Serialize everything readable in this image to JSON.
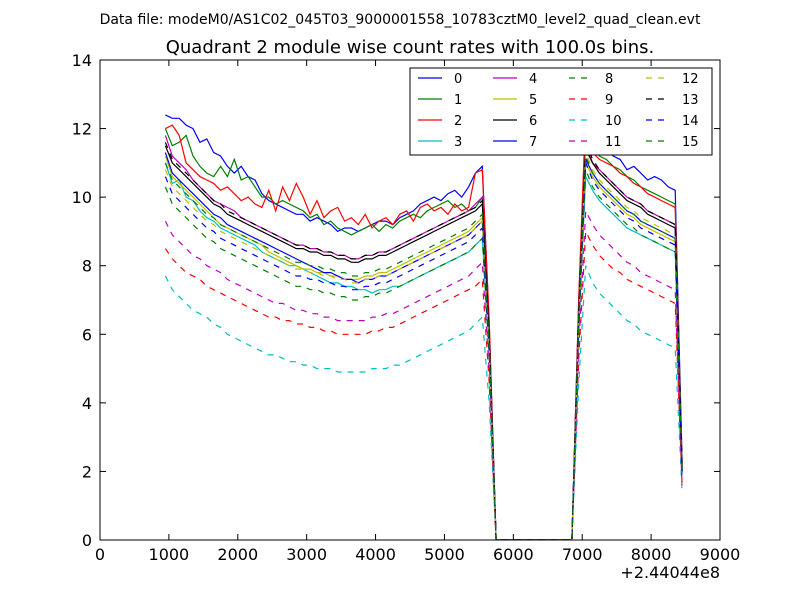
{
  "figure": {
    "suptitle": "Data file: modeM0/AS1C02_045T03_9000001558_10783cztM0_level2_quad_clean.evt"
  },
  "chart_data": {
    "type": "line",
    "title": "Quadrant 2 module wise count rates with 100.0s bins.",
    "xlabel": "",
    "ylabel": "",
    "x_offset_label": "+2.44044e8",
    "xlim": [
      0,
      9000
    ],
    "ylim": [
      0,
      14
    ],
    "x_ticks": [
      0,
      1000,
      2000,
      3000,
      4000,
      5000,
      6000,
      7000,
      8000,
      9000
    ],
    "y_ticks": [
      0,
      2,
      4,
      6,
      8,
      10,
      12,
      14
    ],
    "grid": false,
    "legend": {
      "position": "top-right",
      "columns": 4
    },
    "x": [
      950,
      1050,
      1150,
      1250,
      1350,
      1450,
      1550,
      1650,
      1750,
      1850,
      1950,
      2050,
      2150,
      2250,
      2350,
      2450,
      2550,
      2650,
      2750,
      2850,
      2950,
      3050,
      3150,
      3250,
      3350,
      3450,
      3550,
      3650,
      3750,
      3850,
      3950,
      4050,
      4150,
      4250,
      4350,
      4450,
      4550,
      4650,
      4750,
      4850,
      4950,
      5050,
      5150,
      5250,
      5350,
      5450,
      5550,
      5650,
      5750,
      6850,
      6950,
      7050,
      7150,
      7250,
      7350,
      7450,
      7550,
      7650,
      7750,
      7850,
      7950,
      8050,
      8150,
      8250,
      8350,
      8450
    ],
    "series": [
      {
        "name": "0",
        "color": "#0000ff",
        "dash": "solid",
        "values": [
          12.4,
          12.3,
          12.3,
          12.1,
          12.0,
          11.6,
          11.7,
          11.3,
          11.2,
          10.9,
          10.7,
          10.9,
          10.6,
          10.5,
          10.1,
          9.9,
          9.8,
          9.7,
          9.6,
          9.5,
          9.5,
          9.3,
          9.4,
          9.3,
          9.2,
          9.0,
          9.1,
          9.1,
          9.0,
          9.1,
          9.2,
          9.3,
          9.3,
          9.2,
          9.4,
          9.5,
          9.6,
          9.8,
          9.9,
          10.0,
          9.9,
          10.1,
          10.2,
          10.0,
          10.3,
          10.7,
          10.9,
          6.3,
          0,
          0,
          7.0,
          12.2,
          11.8,
          11.6,
          11.4,
          11.2,
          11.1,
          10.8,
          10.9,
          10.7,
          10.5,
          10.6,
          10.5,
          10.3,
          10.2,
          2.3
        ]
      },
      {
        "name": "1",
        "color": "#008000",
        "dash": "solid",
        "values": [
          12.0,
          11.5,
          11.6,
          11.8,
          11.2,
          10.9,
          10.7,
          10.6,
          10.9,
          10.6,
          11.1,
          10.5,
          10.6,
          10.3,
          10.0,
          10.0,
          9.8,
          9.9,
          9.8,
          9.7,
          9.6,
          9.4,
          9.5,
          9.2,
          9.3,
          9.1,
          9.0,
          8.9,
          9.0,
          9.1,
          9.2,
          9.0,
          9.2,
          9.1,
          9.3,
          9.4,
          9.5,
          9.4,
          9.6,
          9.7,
          9.8,
          9.9,
          9.7,
          9.8,
          9.6,
          9.7,
          10.0,
          6.2,
          0,
          0,
          6.9,
          11.9,
          11.5,
          11.2,
          11.1,
          10.9,
          10.8,
          10.6,
          10.5,
          10.3,
          10.2,
          10.1,
          10.0,
          9.9,
          9.8,
          2.2
        ]
      },
      {
        "name": "2",
        "color": "#ff0000",
        "dash": "solid",
        "values": [
          12.0,
          12.1,
          11.8,
          11.0,
          10.8,
          10.6,
          10.5,
          10.4,
          10.2,
          10.3,
          10.1,
          9.9,
          10.0,
          9.8,
          9.7,
          10.2,
          9.6,
          10.3,
          9.9,
          10.4,
          10.0,
          9.5,
          9.9,
          9.4,
          9.6,
          9.7,
          9.3,
          9.4,
          9.2,
          9.5,
          9.1,
          9.3,
          9.4,
          9.2,
          9.5,
          9.6,
          9.3,
          9.7,
          9.8,
          9.6,
          9.7,
          9.5,
          9.8,
          9.6,
          9.7,
          10.7,
          10.8,
          6.4,
          0,
          0,
          7.1,
          12.5,
          11.3,
          11.1,
          11.0,
          10.9,
          10.7,
          10.6,
          10.4,
          10.3,
          10.1,
          10.0,
          9.9,
          9.8,
          9.7,
          2.1
        ]
      },
      {
        "name": "3",
        "color": "#00bfbf",
        "dash": "solid",
        "values": [
          11.0,
          10.4,
          10.5,
          10.0,
          9.9,
          9.6,
          9.4,
          9.3,
          9.1,
          9.0,
          8.9,
          8.8,
          8.7,
          8.6,
          8.4,
          8.3,
          8.2,
          8.1,
          8.0,
          8.0,
          7.9,
          7.8,
          7.7,
          7.6,
          7.5,
          7.5,
          7.4,
          7.4,
          7.3,
          7.3,
          7.2,
          7.3,
          7.3,
          7.4,
          7.4,
          7.5,
          7.6,
          7.7,
          7.8,
          7.9,
          8.0,
          8.1,
          8.2,
          8.3,
          8.4,
          8.6,
          8.8,
          5.5,
          0,
          0,
          6.3,
          10.6,
          10.2,
          9.9,
          9.7,
          9.5,
          9.3,
          9.1,
          9.0,
          8.9,
          8.8,
          8.7,
          8.6,
          8.5,
          8.4,
          1.9
        ]
      },
      {
        "name": "4",
        "color": "#bf00bf",
        "dash": "solid",
        "values": [
          11.8,
          11.2,
          11.0,
          10.8,
          10.5,
          10.3,
          10.1,
          9.9,
          9.8,
          9.7,
          9.6,
          9.4,
          9.3,
          9.2,
          9.1,
          9.0,
          8.9,
          8.8,
          8.7,
          8.6,
          8.6,
          8.5,
          8.5,
          8.4,
          8.4,
          8.3,
          8.3,
          8.2,
          8.2,
          8.3,
          8.3,
          8.4,
          8.4,
          8.5,
          8.6,
          8.7,
          8.8,
          8.9,
          9.0,
          9.1,
          9.2,
          9.3,
          9.4,
          9.5,
          9.6,
          9.8,
          10.0,
          6.0,
          0,
          0,
          6.7,
          11.5,
          11.0,
          10.8,
          10.6,
          10.4,
          10.2,
          10.0,
          9.9,
          9.8,
          9.6,
          9.5,
          9.4,
          9.3,
          9.2,
          2.1
        ]
      },
      {
        "name": "5",
        "color": "#bfbf00",
        "dash": "solid",
        "values": [
          11.2,
          10.6,
          10.4,
          10.2,
          10.0,
          9.8,
          9.6,
          9.4,
          9.2,
          9.1,
          9.0,
          8.9,
          8.8,
          8.7,
          8.6,
          8.4,
          8.3,
          8.2,
          8.1,
          8.0,
          7.9,
          7.9,
          7.8,
          7.8,
          7.7,
          7.7,
          7.6,
          7.6,
          7.6,
          7.7,
          7.7,
          7.8,
          7.8,
          7.9,
          8.0,
          8.1,
          8.2,
          8.3,
          8.4,
          8.5,
          8.6,
          8.7,
          8.8,
          8.9,
          9.0,
          9.2,
          9.4,
          5.7,
          0,
          0,
          6.5,
          11.0,
          10.6,
          10.3,
          10.1,
          9.9,
          9.7,
          9.5,
          9.4,
          9.2,
          9.1,
          9.0,
          8.9,
          8.8,
          8.7,
          2.0
        ]
      },
      {
        "name": "6",
        "color": "#000000",
        "dash": "solid",
        "values": [
          11.5,
          11.0,
          10.8,
          10.6,
          10.4,
          10.2,
          10.0,
          9.8,
          9.7,
          9.5,
          9.4,
          9.3,
          9.2,
          9.1,
          9.0,
          8.9,
          8.8,
          8.7,
          8.6,
          8.5,
          8.5,
          8.4,
          8.4,
          8.3,
          8.3,
          8.2,
          8.2,
          8.1,
          8.1,
          8.2,
          8.2,
          8.3,
          8.3,
          8.4,
          8.5,
          8.6,
          8.7,
          8.8,
          8.9,
          9.0,
          9.1,
          9.2,
          9.3,
          9.4,
          9.5,
          9.6,
          9.8,
          5.9,
          0,
          0,
          6.6,
          11.4,
          11.0,
          10.7,
          10.5,
          10.3,
          10.1,
          9.9,
          9.8,
          9.7,
          9.5,
          9.4,
          9.3,
          9.2,
          9.1,
          2.1
        ]
      },
      {
        "name": "7",
        "color": "#0000ff",
        "dash": "solid",
        "values": [
          11.3,
          10.7,
          10.5,
          10.3,
          10.1,
          9.9,
          9.7,
          9.5,
          9.4,
          9.2,
          9.1,
          9.0,
          8.9,
          8.8,
          8.7,
          8.6,
          8.5,
          8.4,
          8.3,
          8.2,
          8.1,
          8.0,
          7.9,
          7.8,
          7.8,
          7.7,
          7.6,
          7.6,
          7.5,
          7.6,
          7.6,
          7.7,
          7.7,
          7.8,
          7.9,
          8.0,
          8.1,
          8.2,
          8.3,
          8.4,
          8.5,
          8.6,
          8.7,
          8.8,
          8.9,
          9.1,
          9.3,
          5.6,
          0,
          0,
          6.4,
          11.1,
          10.7,
          10.4,
          10.2,
          10.0,
          9.8,
          9.6,
          9.5,
          9.3,
          9.2,
          9.1,
          9.0,
          8.9,
          8.8,
          2.0
        ]
      },
      {
        "name": "8",
        "color": "#008000",
        "dash": "dashed",
        "values": [
          10.3,
          9.8,
          9.6,
          9.4,
          9.2,
          9.0,
          8.8,
          8.7,
          8.5,
          8.4,
          8.3,
          8.2,
          8.1,
          8.0,
          7.9,
          7.8,
          7.7,
          7.6,
          7.5,
          7.4,
          7.4,
          7.3,
          7.3,
          7.2,
          7.2,
          7.1,
          7.1,
          7.0,
          7.0,
          7.1,
          7.1,
          7.2,
          7.2,
          7.3,
          7.4,
          7.5,
          7.6,
          7.7,
          7.8,
          7.9,
          8.0,
          8.1,
          8.2,
          8.3,
          8.4,
          8.6,
          8.8,
          5.3,
          0,
          0,
          6.1,
          10.8,
          10.3,
          10.0,
          9.8,
          9.6,
          9.4,
          9.2,
          9.1,
          8.9,
          8.8,
          8.7,
          8.6,
          8.5,
          8.4,
          1.9
        ]
      },
      {
        "name": "9",
        "color": "#ff0000",
        "dash": "dashed",
        "values": [
          8.5,
          8.2,
          8.0,
          7.8,
          7.7,
          7.6,
          7.4,
          7.3,
          7.2,
          7.1,
          7.0,
          6.9,
          6.8,
          6.7,
          6.6,
          6.5,
          6.5,
          6.4,
          6.4,
          6.3,
          6.3,
          6.2,
          6.2,
          6.1,
          6.1,
          6.0,
          6.0,
          6.0,
          6.0,
          6.0,
          6.1,
          6.1,
          6.2,
          6.2,
          6.3,
          6.4,
          6.5,
          6.6,
          6.7,
          6.8,
          6.9,
          7.0,
          7.1,
          7.2,
          7.3,
          7.4,
          7.6,
          4.6,
          0,
          0,
          5.3,
          9.0,
          8.6,
          8.3,
          8.1,
          7.9,
          7.8,
          7.6,
          7.5,
          7.4,
          7.3,
          7.2,
          7.1,
          7.0,
          6.9,
          1.6
        ]
      },
      {
        "name": "10",
        "color": "#00bfbf",
        "dash": "dashed",
        "values": [
          7.7,
          7.3,
          7.1,
          6.9,
          6.7,
          6.6,
          6.5,
          6.3,
          6.2,
          6.0,
          5.9,
          5.8,
          5.7,
          5.6,
          5.5,
          5.4,
          5.4,
          5.3,
          5.2,
          5.2,
          5.1,
          5.1,
          5.0,
          5.0,
          5.0,
          4.9,
          4.9,
          4.9,
          4.9,
          4.9,
          5.0,
          5.0,
          5.0,
          5.1,
          5.1,
          5.2,
          5.3,
          5.4,
          5.5,
          5.6,
          5.7,
          5.8,
          5.9,
          6.0,
          6.1,
          6.3,
          6.5,
          4.0,
          0,
          0,
          4.6,
          8.0,
          7.5,
          7.2,
          7.0,
          6.8,
          6.6,
          6.4,
          6.3,
          6.1,
          6.0,
          5.9,
          5.8,
          5.7,
          5.6,
          1.4
        ]
      },
      {
        "name": "11",
        "color": "#bf00bf",
        "dash": "dashed",
        "values": [
          9.3,
          8.9,
          8.7,
          8.5,
          8.3,
          8.2,
          8.0,
          7.9,
          7.8,
          7.6,
          7.5,
          7.4,
          7.3,
          7.2,
          7.1,
          7.0,
          6.9,
          6.9,
          6.8,
          6.7,
          6.7,
          6.6,
          6.6,
          6.5,
          6.5,
          6.4,
          6.4,
          6.4,
          6.4,
          6.4,
          6.5,
          6.5,
          6.6,
          6.6,
          6.7,
          6.8,
          6.9,
          7.0,
          7.1,
          7.2,
          7.3,
          7.4,
          7.5,
          7.6,
          7.7,
          7.9,
          8.1,
          4.9,
          0,
          0,
          5.6,
          9.6,
          9.2,
          8.9,
          8.7,
          8.5,
          8.3,
          8.1,
          8.0,
          7.8,
          7.7,
          7.6,
          7.5,
          7.4,
          7.3,
          1.6
        ]
      },
      {
        "name": "12",
        "color": "#bfbf00",
        "dash": "dashed",
        "values": [
          10.8,
          10.3,
          10.1,
          9.9,
          9.7,
          9.5,
          9.3,
          9.2,
          9.0,
          8.9,
          8.8,
          8.7,
          8.6,
          8.5,
          8.4,
          8.3,
          8.2,
          8.1,
          8.0,
          7.9,
          7.9,
          7.8,
          7.8,
          7.7,
          7.7,
          7.6,
          7.6,
          7.5,
          7.5,
          7.6,
          7.6,
          7.7,
          7.7,
          7.8,
          7.9,
          8.0,
          8.1,
          8.2,
          8.3,
          8.4,
          8.5,
          8.6,
          8.7,
          8.8,
          8.9,
          9.1,
          9.3,
          5.6,
          0,
          0,
          6.4,
          11.3,
          10.8,
          10.5,
          10.3,
          10.1,
          9.9,
          9.7,
          9.6,
          9.4,
          9.3,
          9.2,
          9.1,
          9.0,
          8.9,
          2.0
        ]
      },
      {
        "name": "13",
        "color": "#000000",
        "dash": "dashed",
        "values": [
          11.6,
          11.1,
          10.9,
          10.7,
          10.5,
          10.3,
          10.1,
          9.9,
          9.8,
          9.6,
          9.5,
          9.4,
          9.3,
          9.2,
          9.1,
          9.0,
          8.9,
          8.8,
          8.7,
          8.6,
          8.6,
          8.5,
          8.5,
          8.4,
          8.4,
          8.3,
          8.3,
          8.2,
          8.2,
          8.3,
          8.3,
          8.4,
          8.4,
          8.5,
          8.6,
          8.7,
          8.8,
          8.9,
          9.0,
          9.1,
          9.2,
          9.3,
          9.4,
          9.5,
          9.6,
          9.7,
          9.9,
          6.0,
          0,
          0,
          6.7,
          11.6,
          11.1,
          10.8,
          10.6,
          10.4,
          10.2,
          10.0,
          9.9,
          9.8,
          9.6,
          9.5,
          9.4,
          9.3,
          9.2,
          2.1
        ]
      },
      {
        "name": "14",
        "color": "#0000ff",
        "dash": "dashed",
        "values": [
          10.6,
          10.1,
          9.9,
          9.7,
          9.5,
          9.3,
          9.1,
          9.0,
          8.8,
          8.7,
          8.6,
          8.5,
          8.4,
          8.3,
          8.2,
          8.1,
          8.0,
          7.9,
          7.8,
          7.7,
          7.7,
          7.6,
          7.6,
          7.5,
          7.5,
          7.4,
          7.4,
          7.3,
          7.3,
          7.4,
          7.4,
          7.5,
          7.5,
          7.6,
          7.7,
          7.8,
          7.9,
          8.0,
          8.1,
          8.2,
          8.3,
          8.4,
          8.5,
          8.6,
          8.7,
          8.9,
          9.1,
          5.5,
          0,
          0,
          6.3,
          11.0,
          10.5,
          10.2,
          10.0,
          9.8,
          9.6,
          9.4,
          9.3,
          9.1,
          9.0,
          8.9,
          8.8,
          8.7,
          8.6,
          2.0
        ]
      },
      {
        "name": "15",
        "color": "#008000",
        "dash": "dashed",
        "values": [
          11.0,
          10.5,
          10.3,
          10.1,
          9.9,
          9.7,
          9.5,
          9.4,
          9.2,
          9.1,
          9.0,
          8.9,
          8.8,
          8.7,
          8.6,
          8.5,
          8.4,
          8.3,
          8.2,
          8.1,
          8.1,
          8.0,
          8.0,
          7.9,
          7.9,
          7.8,
          7.8,
          7.7,
          7.7,
          7.8,
          7.8,
          7.9,
          7.9,
          8.0,
          8.1,
          8.2,
          8.3,
          8.4,
          8.5,
          8.6,
          8.7,
          8.8,
          8.9,
          9.0,
          9.1,
          9.3,
          9.5,
          5.7,
          0,
          0,
          6.5,
          11.2,
          10.7,
          10.4,
          10.2,
          10.0,
          9.8,
          9.6,
          9.5,
          9.3,
          9.2,
          9.1,
          9.0,
          8.9,
          8.8,
          2.0
        ]
      }
    ]
  }
}
